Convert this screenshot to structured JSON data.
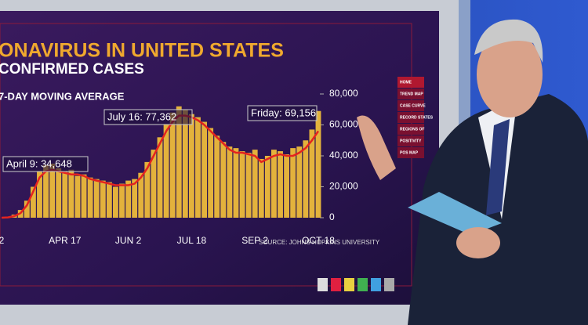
{
  "chart_data": {
    "type": "bar",
    "title": "ONAVIRUS IN UNITED STATES",
    "subtitle": "CONFIRMED CASES",
    "legend_label": "7-DAY MOVING AVERAGE",
    "source": "SOURCE: JOHNS HOPKINS UNIVERSITY",
    "annotations": [
      "April 9: 34,648",
      "July 16: 77,362",
      "Friday: 69,156"
    ],
    "categories": [
      "2",
      null,
      null,
      null,
      null,
      null,
      null,
      null,
      null,
      null,
      "APR 17",
      null,
      null,
      null,
      null,
      null,
      null,
      null,
      null,
      null,
      "JUN 2",
      null,
      null,
      null,
      null,
      null,
      null,
      null,
      null,
      null,
      "JUL 18",
      null,
      null,
      null,
      null,
      null,
      null,
      null,
      null,
      null,
      "SEP 2",
      null,
      null,
      null,
      null,
      null,
      null,
      null,
      null,
      null,
      "OCT 18"
    ],
    "series": [
      {
        "type": "bar",
        "color": "#e3b23c",
        "values": [
          0,
          500,
          2000,
          5000,
          11000,
          20000,
          30000,
          34000,
          35000,
          32000,
          30000,
          31000,
          27000,
          28000,
          26000,
          25000,
          24000,
          23000,
          20000,
          22000,
          24000,
          25000,
          29000,
          36000,
          44000,
          52000,
          60000,
          68000,
          72000,
          70000,
          67000,
          65000,
          62000,
          58000,
          53000,
          49000,
          46000,
          45000,
          43000,
          42000,
          44000,
          38000,
          40000,
          44000,
          43000,
          41000,
          45000,
          46000,
          50000,
          57000,
          69000
        ]
      },
      {
        "type": "line",
        "color": "#e4231f",
        "values": [
          0,
          200,
          1000,
          3000,
          8000,
          17000,
          26000,
          30000,
          31000,
          30000,
          29000,
          28000,
          28000,
          27000,
          25000,
          24000,
          23000,
          22000,
          21000,
          21000,
          21000,
          22000,
          26000,
          32000,
          40000,
          48000,
          56000,
          62000,
          66000,
          66000,
          65000,
          63000,
          60000,
          56000,
          52000,
          48000,
          44000,
          42000,
          42000,
          41000,
          40000,
          36000,
          38000,
          40000,
          41000,
          40000,
          40000,
          42000,
          45000,
          50000,
          56000
        ]
      }
    ],
    "ylim": [
      0,
      80000
    ],
    "yticks": [
      0,
      {
        "value": 20000,
        "label": "20,000"
      },
      {
        "value": 40000,
        "label": "40,000"
      },
      {
        "value": 60000,
        "label": "60,000"
      },
      {
        "value": 80000,
        "label": "80,000"
      }
    ],
    "menu": [
      "HOME",
      "TREND MAP",
      "CASE CURVE",
      "RECORD STATES",
      "REGIONS OF",
      "POSITIVITY",
      "POS MAP"
    ]
  }
}
